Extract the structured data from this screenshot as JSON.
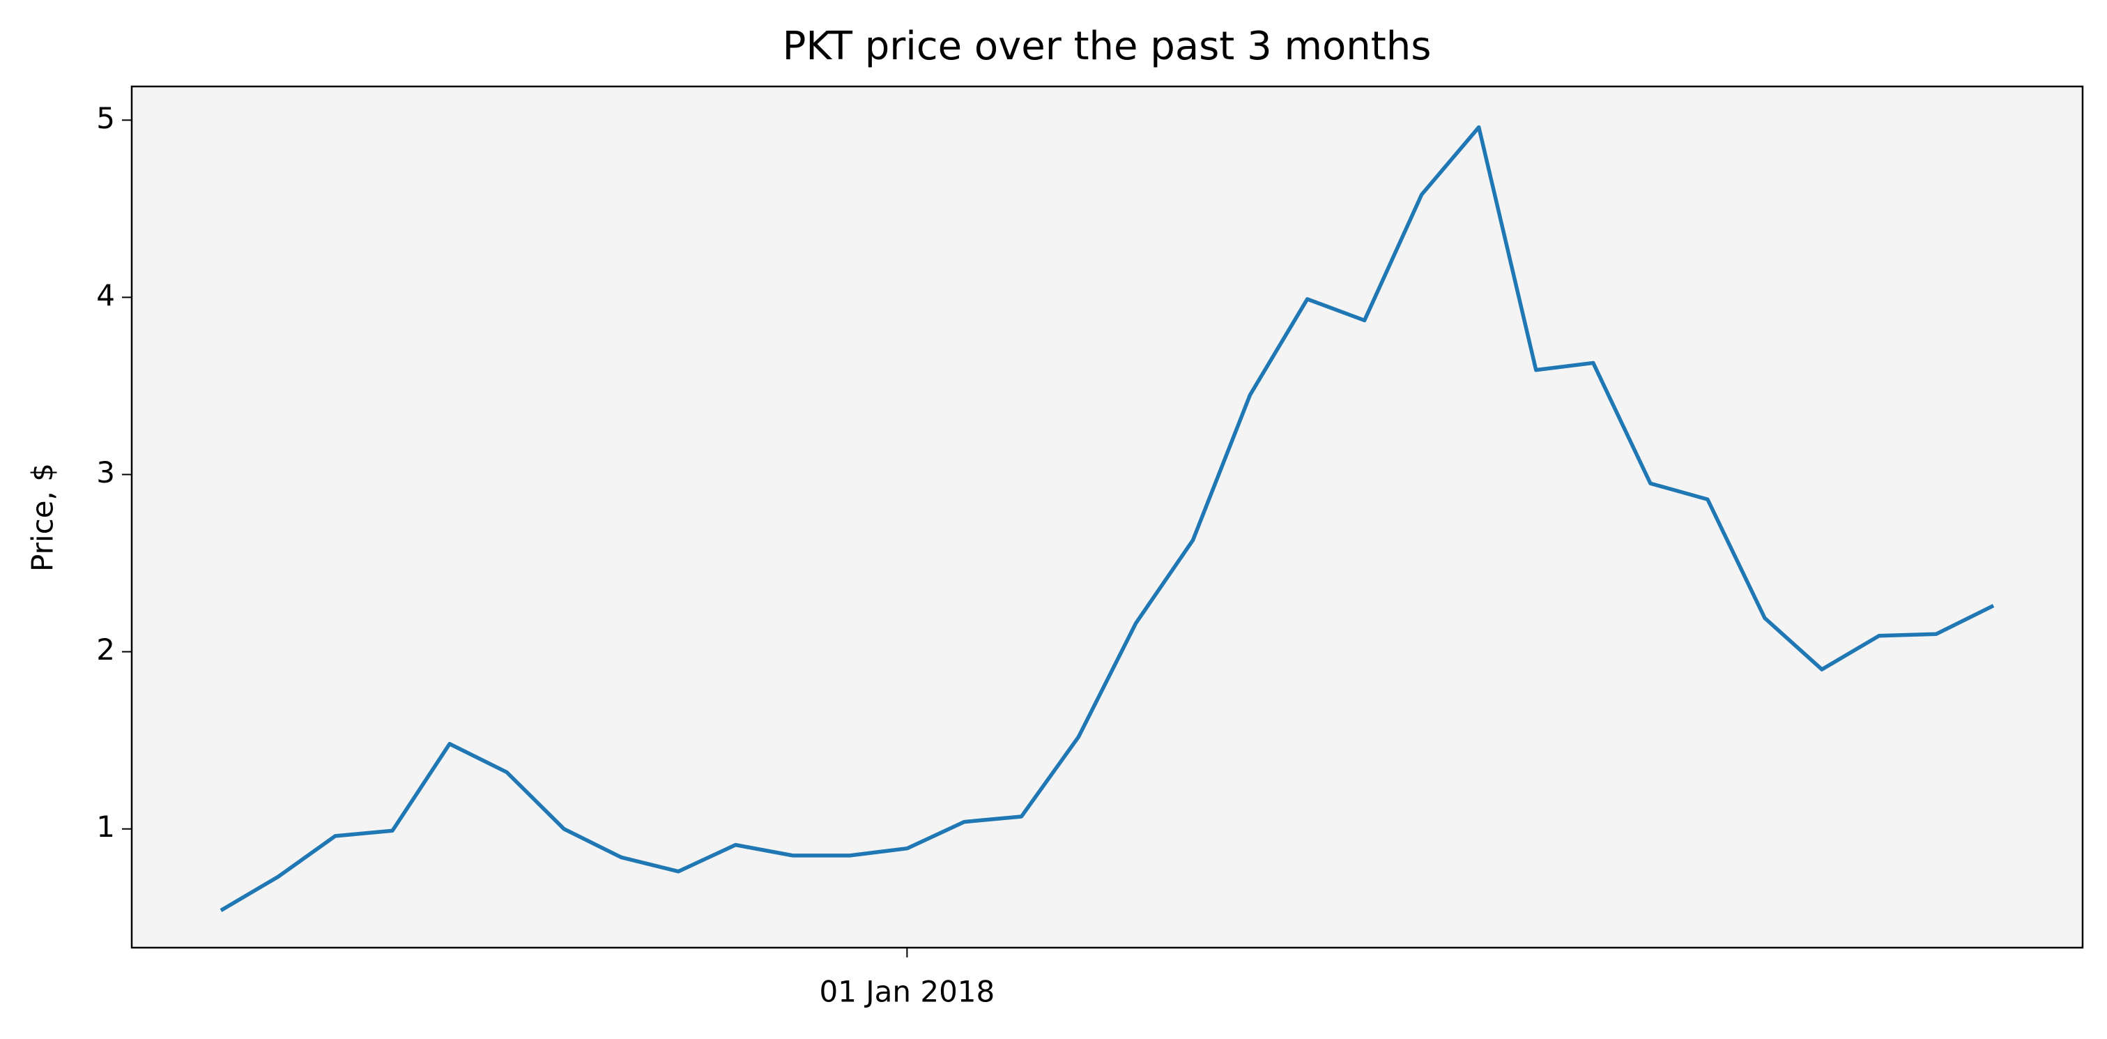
{
  "chart_data": {
    "type": "line",
    "title": "PKT price over the past 3 months",
    "ylabel": "Price, $",
    "categories": [
      null,
      null,
      null,
      null,
      null,
      null,
      null,
      null,
      null,
      null,
      null,
      null,
      "01 Jan 2018",
      null,
      null,
      null,
      null,
      null,
      null,
      null,
      null,
      null,
      null,
      null,
      null,
      null,
      null,
      null,
      null,
      null,
      null,
      null
    ],
    "series": [
      {
        "name": "PKT",
        "color": "#1f77b4",
        "values": [
          0.54,
          0.73,
          0.96,
          0.99,
          1.48,
          1.32,
          1.0,
          0.84,
          0.76,
          0.91,
          0.85,
          0.85,
          0.89,
          1.04,
          1.07,
          1.52,
          2.16,
          2.63,
          3.45,
          3.99,
          3.87,
          4.58,
          4.96,
          3.59,
          3.63,
          2.95,
          2.86,
          2.19,
          1.9,
          2.09,
          2.1,
          2.26
        ]
      }
    ],
    "ylim": [
      0.33,
      5.19
    ],
    "yticks": [
      1,
      2,
      3,
      4,
      5
    ],
    "grid": false,
    "background": "#f4f4f4"
  }
}
